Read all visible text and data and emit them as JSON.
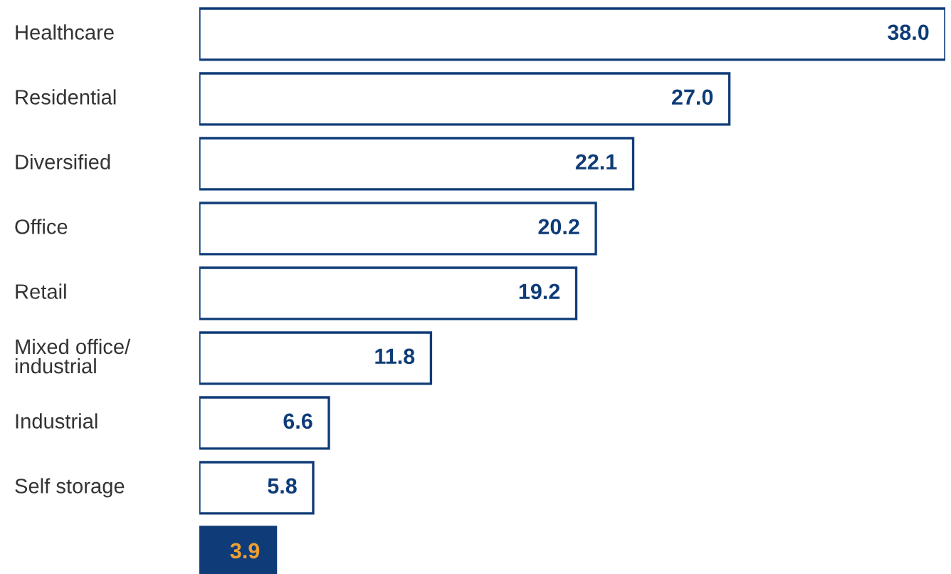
{
  "chart_data": {
    "type": "bar",
    "orientation": "horizontal",
    "categories": [
      "Healthcare",
      "Residential",
      "Diversified",
      "Office",
      "Retail",
      "Mixed office/\nindustrial",
      "Industrial",
      "Self storage",
      null
    ],
    "values": [
      38.0,
      27.0,
      22.1,
      20.2,
      19.2,
      11.8,
      6.6,
      5.8,
      3.9
    ],
    "value_labels": [
      "38.0",
      "27.0",
      "22.1",
      "20.2",
      "19.2",
      "11.8",
      "6.6",
      "5.8",
      "3.9"
    ],
    "colors": [
      "#ffffff",
      "#ffffff",
      "#ffffff",
      "#ffffff",
      "#ffffff",
      "#ffffff",
      "#ffffff",
      "#ffffff",
      "#0f3c78"
    ]
  }
}
